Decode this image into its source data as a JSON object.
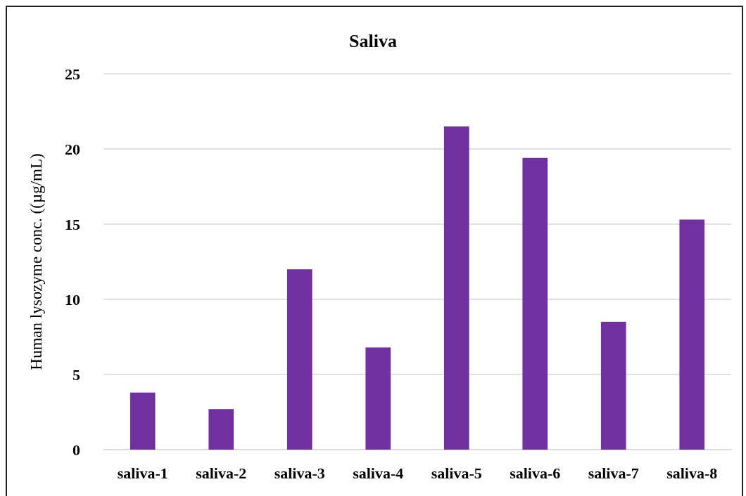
{
  "chart_data": {
    "type": "bar",
    "title": "Saliva",
    "ylabel": "Human lysozyme conc. ((µg/mL)",
    "categories": [
      "saliva-1",
      "saliva-2",
      "saliva-3",
      "saliva-4",
      "saliva-5",
      "saliva-6",
      "saliva-7",
      "saliva-8"
    ],
    "values": [
      3.8,
      2.7,
      12.0,
      6.8,
      21.5,
      19.4,
      8.5,
      15.3
    ],
    "color": "#7030a0",
    "ylim": [
      0,
      25
    ],
    "yticks": [
      0,
      5,
      10,
      15,
      20,
      25
    ],
    "grid": "y"
  }
}
